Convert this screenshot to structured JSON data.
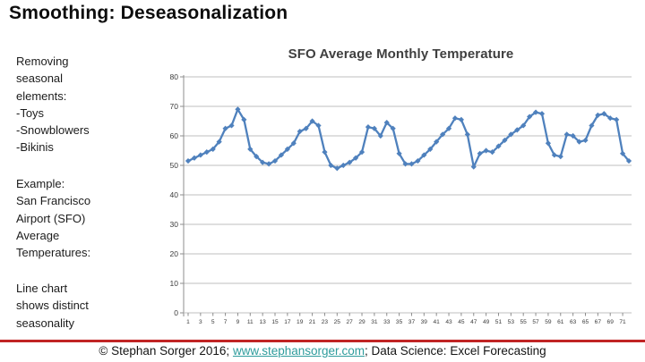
{
  "slide": {
    "title": "Smoothing: Deseasonalization",
    "sidebar": {
      "block1": [
        "Removing",
        "seasonal",
        "elements:",
        "-Toys",
        "-Snowblowers",
        "-Bikinis"
      ],
      "block2": [
        "Example:",
        "San Francisco",
        "Airport (SFO)",
        "Average",
        "Temperatures:"
      ],
      "block3": [
        "Line chart",
        "shows distinct",
        "seasonality"
      ]
    },
    "footer": {
      "prefix": "© Stephan Sorger 2016; ",
      "link": "www.stephansorger.com",
      "suffix": "; Data Science: Excel Forecasting"
    }
  },
  "colors": {
    "series_line": "#4F81BD",
    "gridline": "#BFBFBF",
    "axis": "#8C8C8C",
    "tick_label": "#3b3b3b",
    "chart_title": "#3F3F3F",
    "red_rule": "#c02424",
    "link": "#2E9C9C"
  },
  "chart_data": {
    "type": "line",
    "title": "SFO Average Monthly Temperature",
    "xlabel": "",
    "ylabel": "",
    "ylim": [
      0,
      80
    ],
    "ytick_labels": [
      0,
      10,
      20,
      30,
      40,
      50,
      60,
      70,
      80
    ],
    "xtick_labels": [
      1,
      3,
      5,
      7,
      9,
      11,
      13,
      15,
      17,
      19,
      21,
      23,
      25,
      27,
      29,
      31,
      33,
      35,
      37,
      39,
      41,
      43,
      45,
      47,
      49,
      51,
      53,
      55,
      57,
      59,
      61,
      63,
      65,
      67,
      69,
      71
    ],
    "grid": true,
    "legend": false,
    "marker": "diamond",
    "x": [
      1,
      2,
      3,
      4,
      5,
      6,
      7,
      8,
      9,
      10,
      11,
      12,
      13,
      14,
      15,
      16,
      17,
      18,
      19,
      20,
      21,
      22,
      23,
      24,
      25,
      26,
      27,
      28,
      29,
      30,
      31,
      32,
      33,
      34,
      35,
      36,
      37,
      38,
      39,
      40,
      41,
      42,
      43,
      44,
      45,
      46,
      47,
      48,
      49,
      50,
      51,
      52,
      53,
      54,
      55,
      56,
      57,
      58,
      59,
      60,
      61,
      62,
      63,
      64,
      65,
      66,
      67,
      68,
      69,
      70,
      71,
      72
    ],
    "values": [
      51.5,
      52.5,
      53.5,
      54.5,
      55.5,
      58,
      62.5,
      63.5,
      69,
      65.5,
      55.5,
      53,
      51,
      50.5,
      51.5,
      53.5,
      55.5,
      57.5,
      61.5,
      62.5,
      65,
      63.5,
      54.5,
      50,
      49,
      50,
      51,
      52.5,
      54.5,
      63,
      62.5,
      60,
      64.5,
      62.5,
      54,
      50.5,
      50.5,
      51.5,
      53.5,
      55.5,
      58,
      60.5,
      62.5,
      66,
      65.5,
      60.5,
      49.5,
      54,
      55,
      54.5,
      56.5,
      58.5,
      60.5,
      62,
      63.5,
      66.5,
      68,
      67.5,
      57.5,
      53.5,
      53,
      60.5,
      60,
      58,
      58.5,
      63.5,
      67,
      67.5,
      66,
      65.5,
      54,
      51.5
    ]
  }
}
